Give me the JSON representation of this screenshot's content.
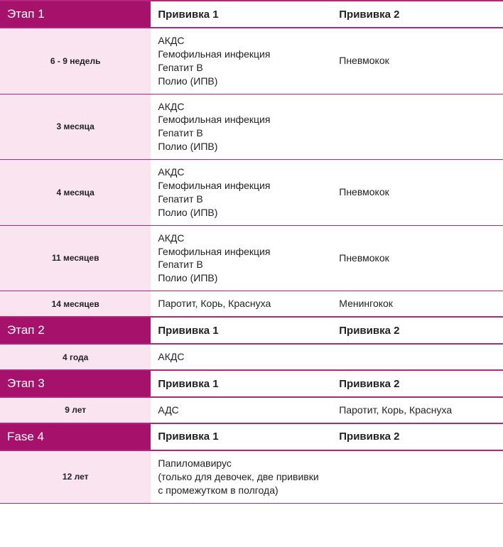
{
  "colors": {
    "magenta_dark": "#a6116b",
    "magenta_border": "#b2277d",
    "pink_light": "#f9e4ef",
    "white": "#ffffff",
    "text": "#222222"
  },
  "col_headers": {
    "v1": "Прививка 1",
    "v2": "Прививка 2"
  },
  "stages": [
    {
      "label": "Этап 1",
      "rows": [
        {
          "age": "6 - 9 недель",
          "v1": "АКДС\nГемофильная инфекция\nГепатит В\nПолио (ИПВ)",
          "v2": "Пневмокок"
        },
        {
          "age": "3 месяца",
          "v1": "АКДС\nГемофильная инфекция\nГепатит В\nПолио (ИПВ)",
          "v2": ""
        },
        {
          "age": "4 месяца",
          "v1": "АКДС\nГемофильная инфекция\nГепатит В\nПолио (ИПВ)",
          "v2": "Пневмокок"
        },
        {
          "age": "11 месяцев",
          "v1": "АКДС\nГемофильная инфекция\nГепатит В\nПолио (ИПВ)",
          "v2": "Пневмокок"
        },
        {
          "age": "14 месяцев",
          "v1": "Паротит, Корь, Краснуха",
          "v2": "Менингокок"
        }
      ]
    },
    {
      "label": "Этап 2",
      "rows": [
        {
          "age": "4 года",
          "v1": "АКДС",
          "v2": ""
        }
      ]
    },
    {
      "label": "Этап 3",
      "rows": [
        {
          "age": "9 лет",
          "v1": "АДС",
          "v2": "Паротит, Корь, Краснуха"
        }
      ]
    },
    {
      "label": "Fase 4",
      "rows": [
        {
          "age": "12 лет",
          "v1": "Папиломавирус\n(только для девочек, две прививки с промежутком в полгода)",
          "v2": ""
        }
      ]
    }
  ]
}
